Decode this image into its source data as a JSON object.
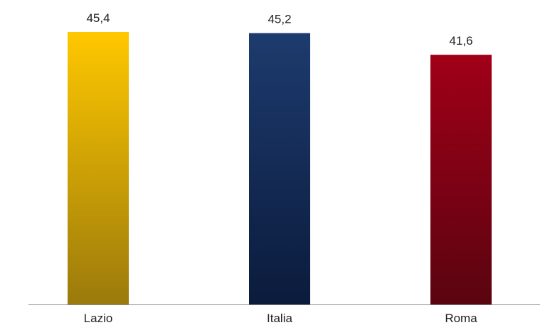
{
  "chart_data": {
    "type": "bar",
    "categories": [
      "Lazio",
      "Italia",
      "Roma"
    ],
    "values": [
      45.4,
      45.2,
      41.6
    ],
    "value_labels": [
      "45,4",
      "45,2",
      "41,6"
    ],
    "ylim": [
      0,
      45.4
    ],
    "grid": false,
    "legend": "none",
    "colors": [
      {
        "top": "#ffc800",
        "bottom": "#9b7a0c"
      },
      {
        "top": "#1d3b6e",
        "bottom": "#0b1b3c"
      },
      {
        "top": "#a00018",
        "bottom": "#5a0410"
      }
    ],
    "axis_color": "#8c8c8c"
  }
}
